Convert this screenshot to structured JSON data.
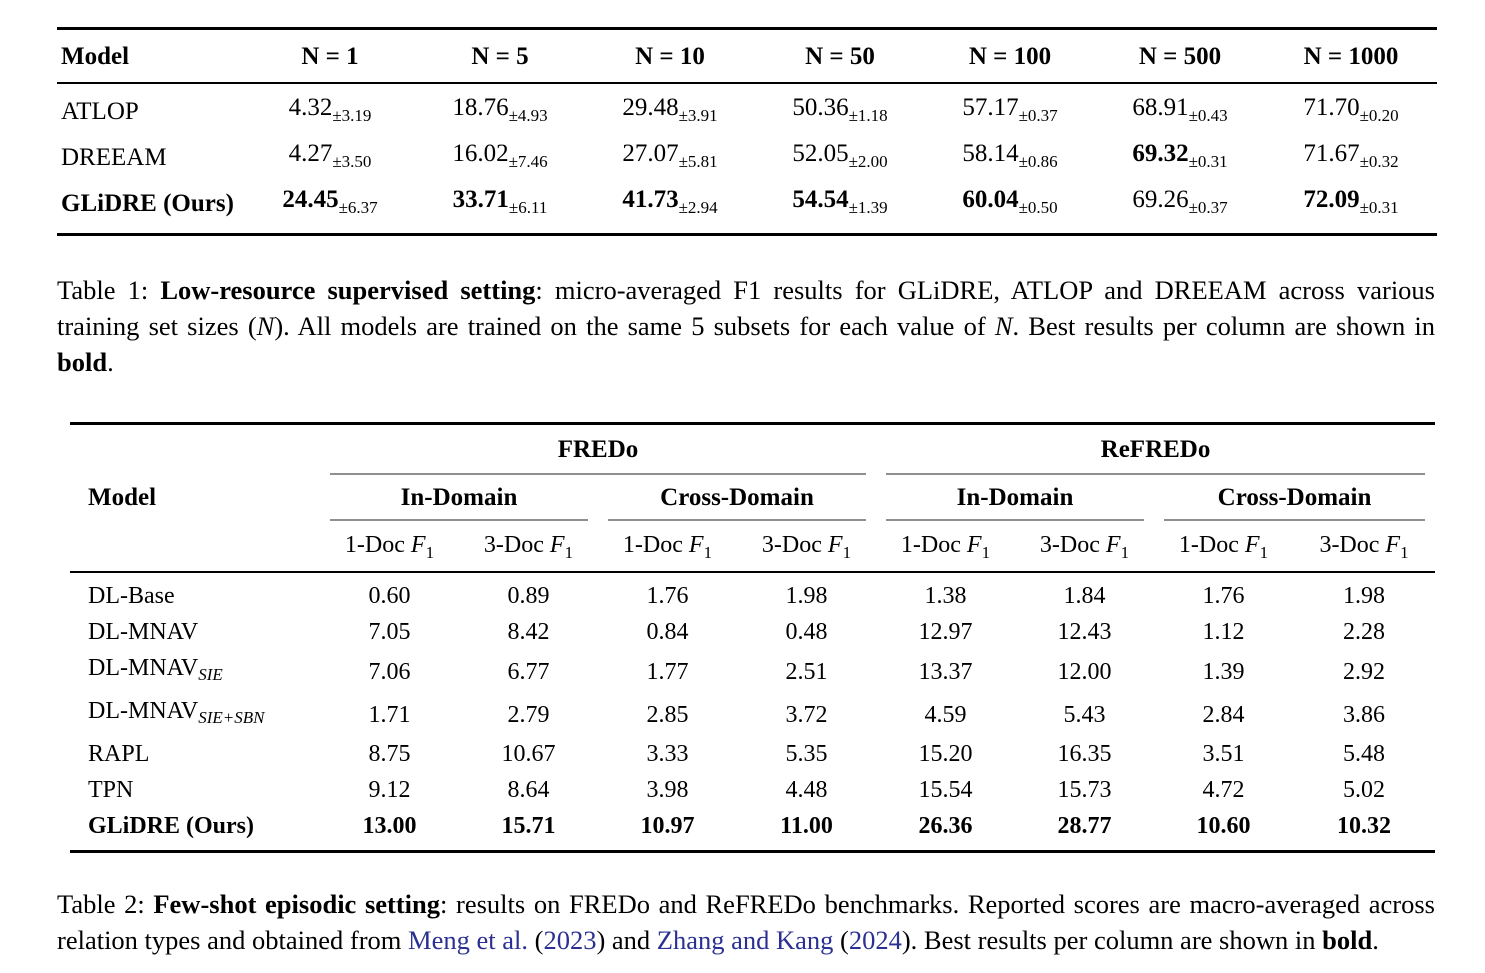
{
  "colors": {
    "link_blue": "#2b3192",
    "rule_black": "#000000",
    "cmidrule_gray": "#8f8f8f",
    "background": "#ffffff"
  },
  "table1": {
    "header": [
      "Model",
      "N = 1",
      "N = 5",
      "N = 10",
      "N = 50",
      "N = 100",
      "N = 500",
      "N = 1000"
    ],
    "rows": [
      {
        "model": "ATLOP",
        "bold": false,
        "values": [
          {
            "v": "4.32",
            "sub": "±3.19",
            "bold": false
          },
          {
            "v": "18.76",
            "sub": "±4.93",
            "bold": false
          },
          {
            "v": "29.48",
            "sub": "±3.91",
            "bold": false
          },
          {
            "v": "50.36",
            "sub": "±1.18",
            "bold": false
          },
          {
            "v": "57.17",
            "sub": "±0.37",
            "bold": false
          },
          {
            "v": "68.91",
            "sub": "±0.43",
            "bold": false
          },
          {
            "v": "71.70",
            "sub": "±0.20",
            "bold": false
          }
        ]
      },
      {
        "model": "DREEAM",
        "bold": false,
        "values": [
          {
            "v": "4.27",
            "sub": "±3.50",
            "bold": false
          },
          {
            "v": "16.02",
            "sub": "±7.46",
            "bold": false
          },
          {
            "v": "27.07",
            "sub": "±5.81",
            "bold": false
          },
          {
            "v": "52.05",
            "sub": "±2.00",
            "bold": false
          },
          {
            "v": "58.14",
            "sub": "±0.86",
            "bold": false
          },
          {
            "v": "69.32",
            "sub": "±0.31",
            "bold": true
          },
          {
            "v": "71.67",
            "sub": "±0.32",
            "bold": false
          }
        ]
      },
      {
        "model": "GLiDRE (Ours)",
        "bold": true,
        "values": [
          {
            "v": "24.45",
            "sub": "±6.37",
            "bold": true
          },
          {
            "v": "33.71",
            "sub": "±6.11",
            "bold": true
          },
          {
            "v": "41.73",
            "sub": "±2.94",
            "bold": true
          },
          {
            "v": "54.54",
            "sub": "±1.39",
            "bold": true
          },
          {
            "v": "60.04",
            "sub": "±0.50",
            "bold": true
          },
          {
            "v": "69.26",
            "sub": "±0.37",
            "bold": false
          },
          {
            "v": "72.09",
            "sub": "±0.31",
            "bold": true
          }
        ]
      }
    ]
  },
  "caption1": {
    "segments": [
      {
        "t": "Table 1: "
      },
      {
        "t": "Low-resource supervised setting",
        "b": 1
      },
      {
        "t": ": micro-averaged F1 results for GLiDRE, ATLOP and DREEAM across various training set sizes ("
      },
      {
        "t": "N",
        "i": 1
      },
      {
        "t": "). All models are trained on the same 5 subsets for each value of "
      },
      {
        "t": "N",
        "i": 1
      },
      {
        "t": ". Best results per column are shown in "
      },
      {
        "t": "bold",
        "b": 1
      },
      {
        "t": "."
      }
    ]
  },
  "table2": {
    "model_header": "Model",
    "groups": [
      "FREDo",
      "ReFREDo"
    ],
    "domains": [
      "In-Domain",
      "Cross-Domain",
      "In-Domain",
      "Cross-Domain"
    ],
    "doc_headers": [
      {
        "pre": "1-Doc ",
        "sym": "F",
        "sub": "1"
      },
      {
        "pre": "3-Doc ",
        "sym": "F",
        "sub": "1"
      },
      {
        "pre": "1-Doc ",
        "sym": "F",
        "sub": "1"
      },
      {
        "pre": "3-Doc ",
        "sym": "F",
        "sub": "1"
      },
      {
        "pre": "1-Doc ",
        "sym": "F",
        "sub": "1"
      },
      {
        "pre": "3-Doc ",
        "sym": "F",
        "sub": "1"
      },
      {
        "pre": "1-Doc ",
        "sym": "F",
        "sub": "1"
      },
      {
        "pre": "3-Doc ",
        "sym": "F",
        "sub": "1"
      }
    ],
    "rows": [
      {
        "model": "DL-Base",
        "msub": "",
        "bold": false,
        "values": [
          "0.60",
          "0.89",
          "1.76",
          "1.98",
          "1.38",
          "1.84",
          "1.76",
          "1.98"
        ]
      },
      {
        "model": "DL-MNAV",
        "msub": "",
        "bold": false,
        "values": [
          "7.05",
          "8.42",
          "0.84",
          "0.48",
          "12.97",
          "12.43",
          "1.12",
          "2.28"
        ]
      },
      {
        "model": "DL-MNAV",
        "msub": "SIE",
        "bold": false,
        "values": [
          "7.06",
          "6.77",
          "1.77",
          "2.51",
          "13.37",
          "12.00",
          "1.39",
          "2.92"
        ]
      },
      {
        "model": "DL-MNAV",
        "msub": "SIE+SBN",
        "bold": false,
        "values": [
          "1.71",
          "2.79",
          "2.85",
          "3.72",
          "4.59",
          "5.43",
          "2.84",
          "3.86"
        ]
      },
      {
        "model": "RAPL",
        "msub": "",
        "bold": false,
        "values": [
          "8.75",
          "10.67",
          "3.33",
          "5.35",
          "15.20",
          "16.35",
          "3.51",
          "5.48"
        ]
      },
      {
        "model": "TPN",
        "msub": "",
        "bold": false,
        "values": [
          "9.12",
          "8.64",
          "3.98",
          "4.48",
          "15.54",
          "15.73",
          "4.72",
          "5.02"
        ]
      },
      {
        "model": "GLiDRE (Ours)",
        "msub": "",
        "bold": true,
        "values": [
          "13.00",
          "15.71",
          "10.97",
          "11.00",
          "26.36",
          "28.77",
          "10.60",
          "10.32"
        ]
      }
    ]
  },
  "caption2": {
    "segments": [
      {
        "t": "Table 2: "
      },
      {
        "t": "Few-shot episodic setting",
        "b": 1
      },
      {
        "t": ": results on FREDo and ReFREDo benchmarks. Reported scores are macro-averaged across relation types and obtained from "
      },
      {
        "t": "Meng et al.",
        "link": 1
      },
      {
        "t": " ("
      },
      {
        "t": "2023",
        "link": 1
      },
      {
        "t": ") and "
      },
      {
        "t": "Zhang and Kang",
        "link": 1
      },
      {
        "t": " ("
      },
      {
        "t": "2024",
        "link": 1
      },
      {
        "t": "). Best results per column are shown in "
      },
      {
        "t": "bold",
        "b": 1
      },
      {
        "t": "."
      }
    ]
  }
}
